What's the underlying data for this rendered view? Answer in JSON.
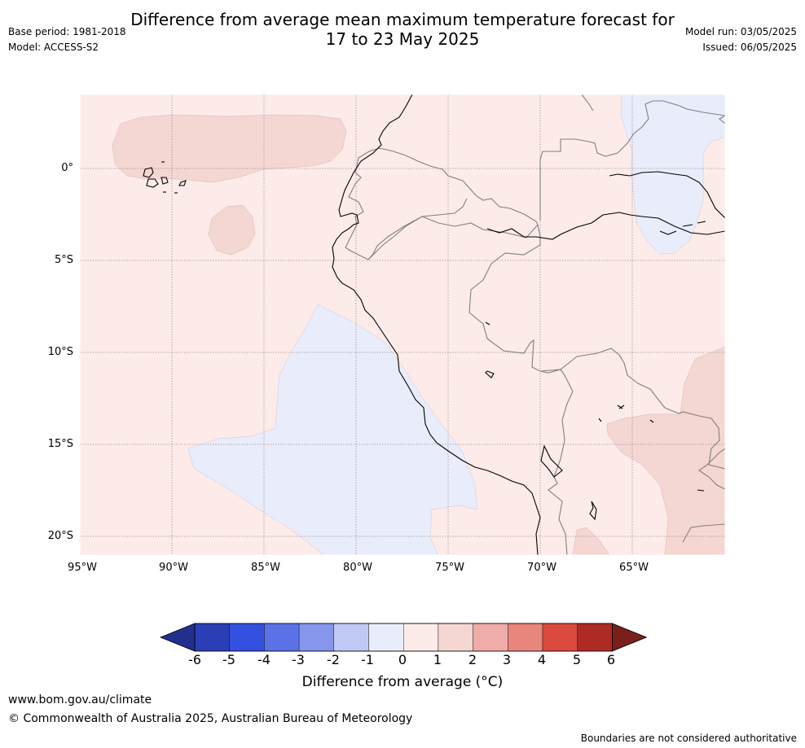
{
  "header": {
    "title_line1": "Difference from average mean maximum temperature forecast for",
    "title_line2": "17 to 23 May 2025",
    "base_period": "Base period: 1981-2018",
    "model": "Model: ACCESS-S2",
    "model_run": "Model run: 03/05/2025",
    "issued": "Issued: 06/05/2025"
  },
  "map": {
    "extent": {
      "lon_min": -95,
      "lon_max": -60,
      "lat_min": -21,
      "lat_max": 4
    },
    "lat_ticks": [
      "0°",
      "5°S",
      "10°S",
      "15°S",
      "20°S"
    ],
    "lon_ticks": [
      "95°W",
      "90°W",
      "85°W",
      "80°W",
      "75°W",
      "70°W",
      "65°W"
    ],
    "background_category": "0 to 1",
    "anomaly_regions": [
      {
        "name": "central-pacific-warm",
        "category": "1 to 2"
      },
      {
        "name": "galapagos-south-warm",
        "category": "1 to 2"
      },
      {
        "name": "peru-coast-cool",
        "category": "-1 to 0"
      },
      {
        "name": "amazon-cool",
        "category": "-1 to 0"
      },
      {
        "name": "bolivia-warm",
        "category": "1 to 2"
      },
      {
        "name": "altiplano-warm",
        "category": "1 to 2"
      }
    ]
  },
  "colorbar": {
    "ticks": [
      "-6",
      "-5",
      "-4",
      "-3",
      "-2",
      "-1",
      "0",
      "1",
      "2",
      "3",
      "4",
      "5",
      "6"
    ],
    "colors": [
      "#232f8f",
      "#2a3fb5",
      "#3450e0",
      "#5a72e6",
      "#8596ec",
      "#c0c8f5",
      "#e9ecfb",
      "#fcebe9",
      "#f4d6d3",
      "#efaca8",
      "#e8857d",
      "#dc493f",
      "#ad2b24",
      "#7a1f1a"
    ],
    "label": "Difference from average (°C)"
  },
  "footer": {
    "url": "www.bom.gov.au/climate",
    "copyright": "© Commonwealth of Australia 2025, Australian Bureau of Meteorology",
    "disclaimer": "Boundaries are not considered authoritative"
  }
}
